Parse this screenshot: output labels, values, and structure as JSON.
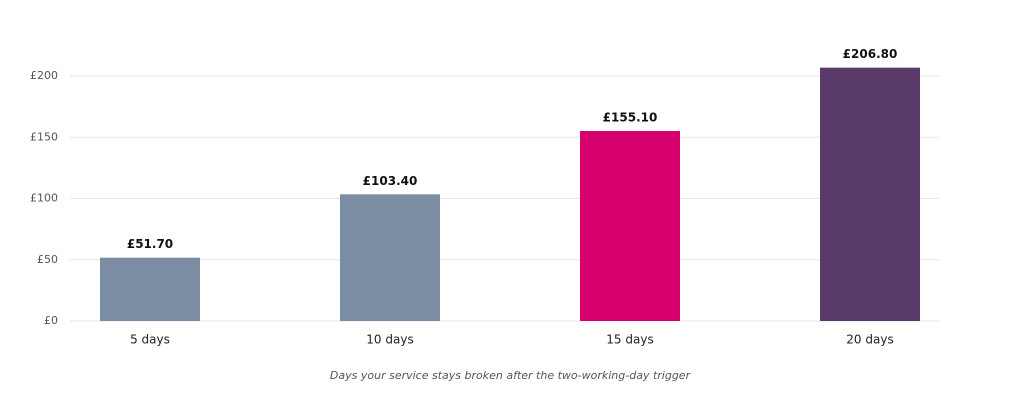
{
  "chart_data": {
    "type": "bar",
    "x_label": "Days your service stays broken after the two-working-day trigger",
    "categories": [
      "5 days",
      "10 days",
      "15 days",
      "20 days"
    ],
    "values": [
      51.7,
      103.4,
      155.1,
      206.8
    ],
    "value_labels": [
      "£51.70",
      "£103.40",
      "£155.10",
      "£206.80"
    ],
    "colors": [
      "#7b8da3",
      "#7b8da3",
      "#d6006e",
      "#5a3a6b"
    ],
    "ylim": [
      0,
      220
    ],
    "yticks": [
      {
        "value": 0,
        "label": "£0"
      },
      {
        "value": 50,
        "label": "£50"
      },
      {
        "value": 100,
        "label": "£100"
      },
      {
        "value": 150,
        "label": "£150"
      },
      {
        "value": 200,
        "label": "£200"
      }
    ],
    "grid": true
  }
}
